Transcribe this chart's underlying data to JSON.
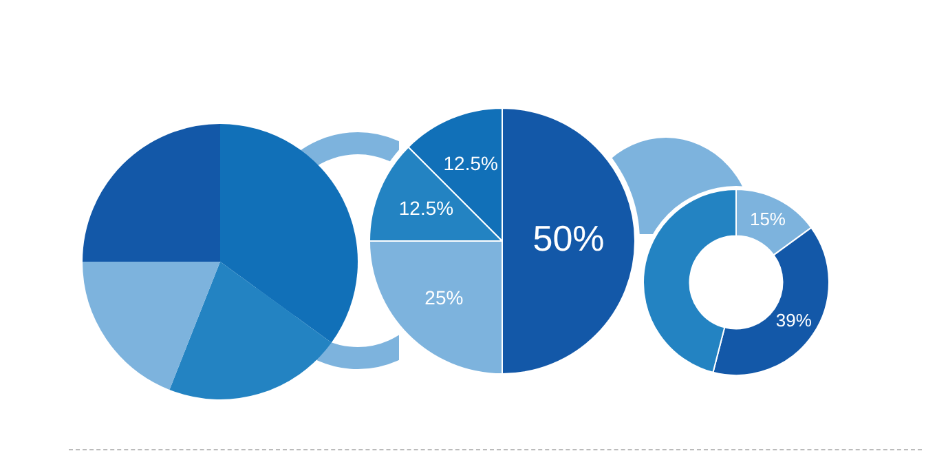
{
  "chart_data": [
    {
      "type": "pie",
      "categories": [
        null,
        null,
        null,
        null
      ],
      "values": [
        35,
        21,
        19,
        25
      ],
      "colors": [
        "#1170b8",
        "#2383c2",
        "#7db3dd",
        "#1358a8"
      ],
      "legend": false
    },
    {
      "type": "pie",
      "categories": [
        null,
        null,
        null,
        null
      ],
      "values": [
        50,
        25,
        12.5,
        12.5
      ],
      "colors": [
        "#1358a8",
        "#7db3dd",
        "#2383c2",
        "#1170b8"
      ],
      "value_labels": [
        "50%",
        "25%",
        "12.5%",
        "12.5%"
      ],
      "legend": false
    },
    {
      "type": "donut",
      "categories": [
        null,
        null,
        null
      ],
      "values": [
        15,
        39,
        46
      ],
      "colors": [
        "#7db3dd",
        "#1358a8",
        "#2383c2"
      ],
      "value_labels": [
        "15%",
        "39%",
        null
      ],
      "legend": false
    }
  ]
}
